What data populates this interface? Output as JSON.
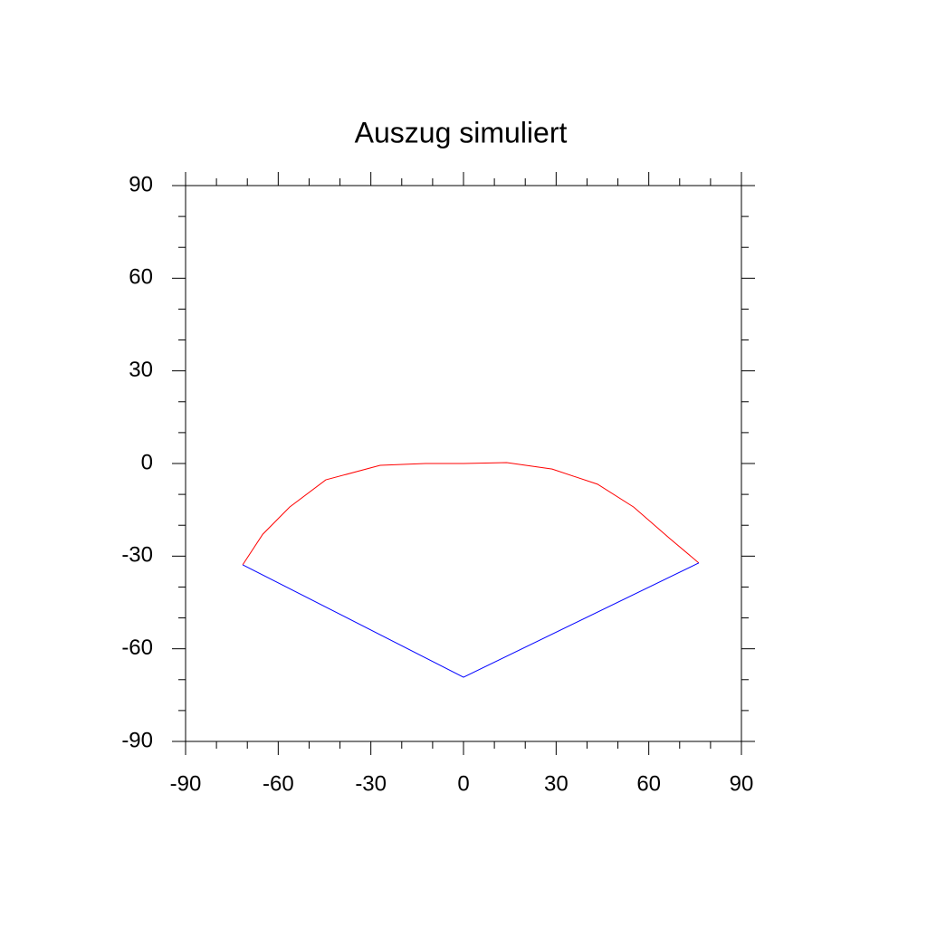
{
  "chart_data": {
    "type": "line",
    "title": "Auszug simuliert",
    "series": [
      {
        "color": "#ff0000",
        "x": [
          -71.5,
          -65,
          -56.3,
          -44.6,
          -27,
          -12.3,
          0,
          14,
          28.7,
          43.4,
          55.1,
          66.8,
          76.2
        ],
        "values": [
          -32.8,
          -22.9,
          -14.1,
          -5.3,
          -0.6,
          0,
          0,
          0.3,
          -1.8,
          -6.7,
          -14.1,
          -24.3,
          -32.2
        ]
      },
      {
        "color": "#0000ff",
        "x": [
          -71.5,
          0,
          76.2
        ],
        "values": [
          -32.8,
          -69.2,
          -32.2
        ]
      }
    ],
    "xlim": [
      -90,
      90
    ],
    "ylim": [
      -90,
      90
    ],
    "xticks": [
      -90,
      -60,
      -30,
      0,
      30,
      60,
      90
    ],
    "yticks": [
      -90,
      -60,
      -30,
      0,
      30,
      60,
      90
    ],
    "x_minor_ticks": [
      -80,
      -70,
      -50,
      -40,
      -20,
      -10,
      10,
      20,
      40,
      50,
      70,
      80
    ],
    "y_minor_ticks": [
      -80,
      -70,
      -50,
      -40,
      -20,
      -10,
      10,
      20,
      40,
      50,
      70,
      80
    ]
  }
}
